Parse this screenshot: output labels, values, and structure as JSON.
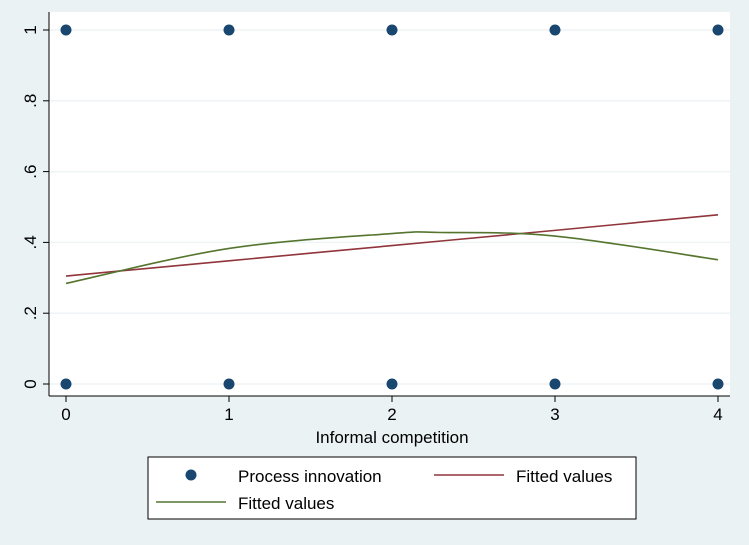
{
  "chart_data": {
    "type": "scatter",
    "xlabel": "Informal competition",
    "ylabel": "",
    "xlim": [
      0,
      4
    ],
    "ylim": [
      0,
      1
    ],
    "x_ticks": [
      "0",
      "1",
      "2",
      "3",
      "4"
    ],
    "y_ticks": [
      "0",
      ".2",
      ".4",
      ".6",
      ".8",
      "1"
    ],
    "grid": true,
    "legend_position": "bottom",
    "series": [
      {
        "name": "Process innovation",
        "kind": "scatter",
        "color": "#1a476f",
        "x": [
          0,
          1,
          2,
          3,
          4,
          0,
          1,
          2,
          3,
          4
        ],
        "y": [
          1,
          1,
          1,
          1,
          1,
          0,
          0,
          0,
          0,
          0
        ]
      },
      {
        "name": "Fitted values",
        "kind": "line",
        "color": "#90353b",
        "x": [
          0,
          1,
          2,
          3,
          4
        ],
        "y": [
          0.305,
          0.348,
          0.391,
          0.434,
          0.478
        ]
      },
      {
        "name": "Fitted values",
        "kind": "line",
        "color": "#55752f",
        "x": [
          0,
          1,
          2,
          2.3,
          3,
          4
        ],
        "y": [
          0.284,
          0.383,
          0.425,
          0.428,
          0.418,
          0.351
        ]
      }
    ]
  }
}
